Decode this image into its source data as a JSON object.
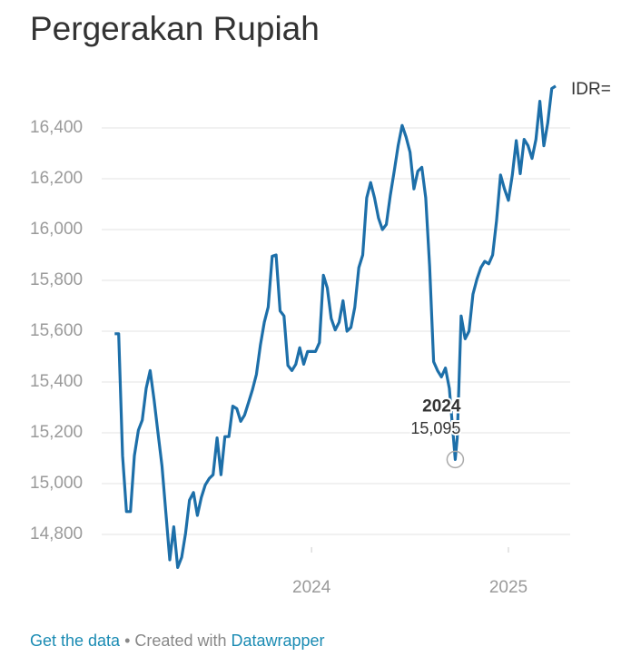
{
  "chart_data": {
    "type": "line",
    "title": "Pergerakan Rupiah",
    "x": [
      2023,
      2023.02,
      2023.04,
      2023.06,
      2023.08,
      2023.1,
      2023.12,
      2023.14,
      2023.16,
      2023.18,
      2023.2,
      2023.22,
      2023.24,
      2023.26,
      2023.28,
      2023.3,
      2023.32,
      2023.34,
      2023.36,
      2023.38,
      2023.4,
      2023.42,
      2023.44,
      2023.46,
      2023.48,
      2023.5,
      2023.52,
      2023.54,
      2023.56,
      2023.58,
      2023.6,
      2023.62,
      2023.64,
      2023.66,
      2023.68,
      2023.7,
      2023.72,
      2023.74,
      2023.76,
      2023.78,
      2023.8,
      2023.82,
      2023.84,
      2023.86,
      2023.88,
      2023.9,
      2023.92,
      2023.94,
      2023.96,
      2023.98,
      2024,
      2024.02,
      2024.04,
      2024.06,
      2024.08,
      2024.1,
      2024.12,
      2024.14,
      2024.16,
      2024.18,
      2024.2,
      2024.22,
      2024.24,
      2024.26,
      2024.28,
      2024.3,
      2024.32,
      2024.34,
      2024.36,
      2024.38,
      2024.4,
      2024.42,
      2024.44,
      2024.46,
      2024.48,
      2024.5,
      2024.52,
      2024.54,
      2024.56,
      2024.58,
      2024.6,
      2024.62,
      2024.64,
      2024.66,
      2024.68,
      2024.7,
      2024.73,
      2024.74,
      2024.76,
      2024.78,
      2024.8,
      2024.82,
      2024.84,
      2024.86,
      2024.88,
      2024.9,
      2024.92,
      2024.94,
      2024.96,
      2024.98,
      2025,
      2025.02,
      2025.04,
      2025.06,
      2025.08,
      2025.1,
      2025.12,
      2025.14,
      2025.16,
      2025.18,
      2025.2,
      2025.22,
      2025.24
    ],
    "series": [
      {
        "name": "IDR=",
        "color": "#1d6fa9",
        "values": [
          15590,
          15590,
          15110,
          14890,
          14890,
          15110,
          15210,
          15250,
          15375,
          15445,
          15330,
          15200,
          15070,
          14885,
          14700,
          14830,
          14670,
          14710,
          14805,
          14935,
          14965,
          14875,
          14945,
          14995,
          15020,
          15035,
          15180,
          15035,
          15185,
          15185,
          15305,
          15295,
          15245,
          15270,
          15320,
          15370,
          15430,
          15545,
          15635,
          15695,
          15895,
          15900,
          15680,
          15660,
          15465,
          15445,
          15470,
          15535,
          15470,
          15520,
          15520,
          15520,
          15555,
          15820,
          15770,
          15650,
          15605,
          15635,
          15720,
          15600,
          15615,
          15695,
          15850,
          15900,
          16125,
          16185,
          16125,
          16045,
          16000,
          16020,
          16135,
          16230,
          16330,
          16410,
          16365,
          16305,
          16160,
          16230,
          16245,
          16125,
          15855,
          15480,
          15445,
          15420,
          15455,
          15375,
          15095,
          15180,
          15660,
          15570,
          15600,
          15745,
          15805,
          15850,
          15875,
          15865,
          15900,
          16035,
          16215,
          16160,
          16115,
          16215,
          16350,
          16220,
          16355,
          16330,
          16280,
          16355,
          16505,
          16330,
          16420,
          16555,
          16565
        ]
      }
    ],
    "xlim": [
      2022.98,
      2025.3
    ],
    "xticks": [
      2024,
      2025
    ],
    "ylim": [
      14750,
      16600
    ],
    "yticks": [
      {
        "value": 14800,
        "label": "14,800"
      },
      {
        "value": 15000,
        "label": "15,000"
      },
      {
        "value": 15200,
        "label": "15,200"
      },
      {
        "value": 15400,
        "label": "15,400"
      },
      {
        "value": 15600,
        "label": "15,600"
      },
      {
        "value": 15800,
        "label": "15,800"
      },
      {
        "value": 16000,
        "label": "16,000"
      },
      {
        "value": 16200,
        "label": "16,200"
      },
      {
        "value": 16400,
        "label": "16,400"
      }
    ],
    "grid": true,
    "annotation": {
      "title": "2024",
      "text": "15,095",
      "x": 2024.73,
      "y": 15095
    }
  },
  "footer": {
    "link": "Get the data",
    "separator": "•",
    "credit": "Created with",
    "brand": "Datawrapper"
  }
}
